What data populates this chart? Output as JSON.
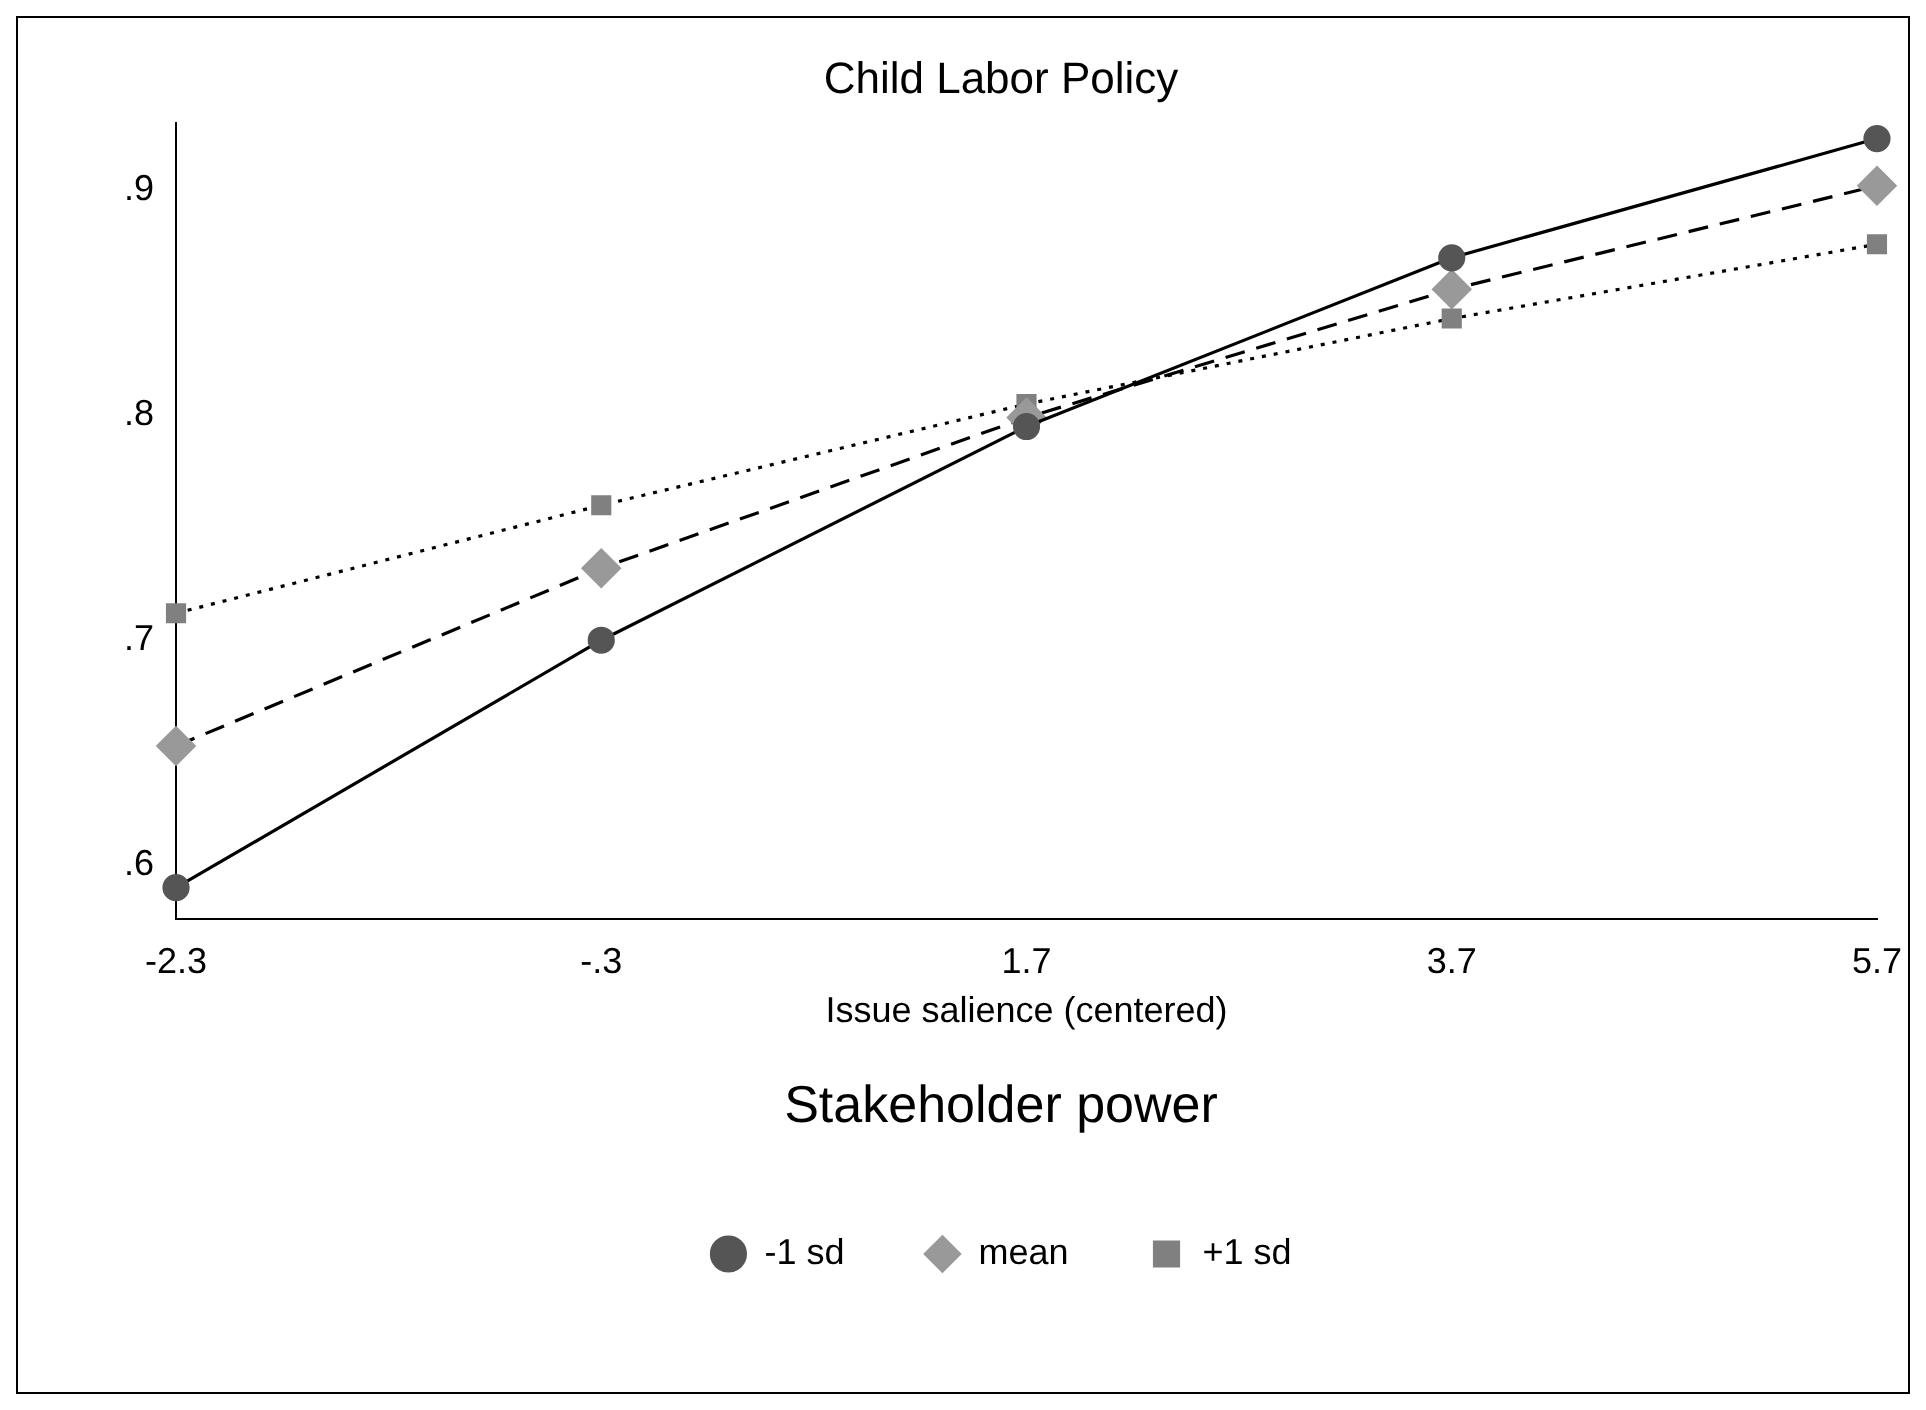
{
  "chart_data": {
    "type": "line",
    "title": "Child Labor Policy",
    "xlabel": "Issue salience (centered)",
    "legend_title": "Stakeholder power",
    "legend": "bottom",
    "grid": false,
    "categories": [
      "-2.3",
      "-.3",
      "1.7",
      "3.7",
      "5.7"
    ],
    "ylim": [
      0.576,
      0.93
    ],
    "yticks": [
      {
        "value": 0.6,
        "label": ".6"
      },
      {
        "value": 0.7,
        "label": ".7"
      },
      {
        "value": 0.8,
        "label": ".8"
      },
      {
        "value": 0.9,
        "label": ".9"
      }
    ],
    "series": [
      {
        "name": "-1 sd",
        "color": "#555555",
        "marker": "circle",
        "line_style": "solid",
        "values": [
          0.59,
          0.7,
          0.795,
          0.87,
          0.923
        ]
      },
      {
        "name": "mean",
        "color": "#999999",
        "marker": "diamond",
        "line_style": "dashed",
        "values": [
          0.653,
          0.732,
          0.799,
          0.856,
          0.902
        ]
      },
      {
        "name": "+1 sd",
        "color": "#808080",
        "marker": "square",
        "line_style": "dotted",
        "values": [
          0.712,
          0.76,
          0.805,
          0.843,
          0.876
        ]
      }
    ]
  }
}
